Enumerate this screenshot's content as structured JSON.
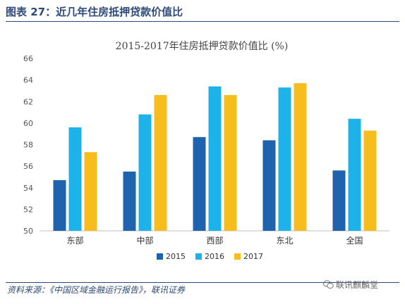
{
  "figure_title": "图表 27：近几年住房抵押贷款价值比",
  "source": "资料来源：《中国区域金融运行报告》，联讯证券",
  "watermark": "联讯麒麟堂",
  "icons": {
    "watermark": "wechat-icon"
  },
  "colors": {
    "2015": "#1f62ad",
    "2016": "#1eb2ea",
    "2017": "#f7bd1c",
    "title": "#2e4a7a"
  },
  "chart_data": {
    "type": "bar",
    "title": "2015-2017年住房抵押贷款价值比 (%)",
    "categories": [
      "东部",
      "中部",
      "西部",
      "东北",
      "全国"
    ],
    "series": [
      {
        "name": "2015",
        "values": [
          54.7,
          55.5,
          58.7,
          58.4,
          55.6
        ]
      },
      {
        "name": "2016",
        "values": [
          59.6,
          60.8,
          63.4,
          63.3,
          60.4
        ]
      },
      {
        "name": "2017",
        "values": [
          57.3,
          62.6,
          62.6,
          63.7,
          59.3
        ]
      }
    ],
    "ylim": [
      50,
      66
    ],
    "yticks": [
      "50",
      "52",
      "54",
      "56",
      "58",
      "60",
      "62",
      "64",
      "66"
    ],
    "grid": false,
    "legend_position": "bottom"
  }
}
